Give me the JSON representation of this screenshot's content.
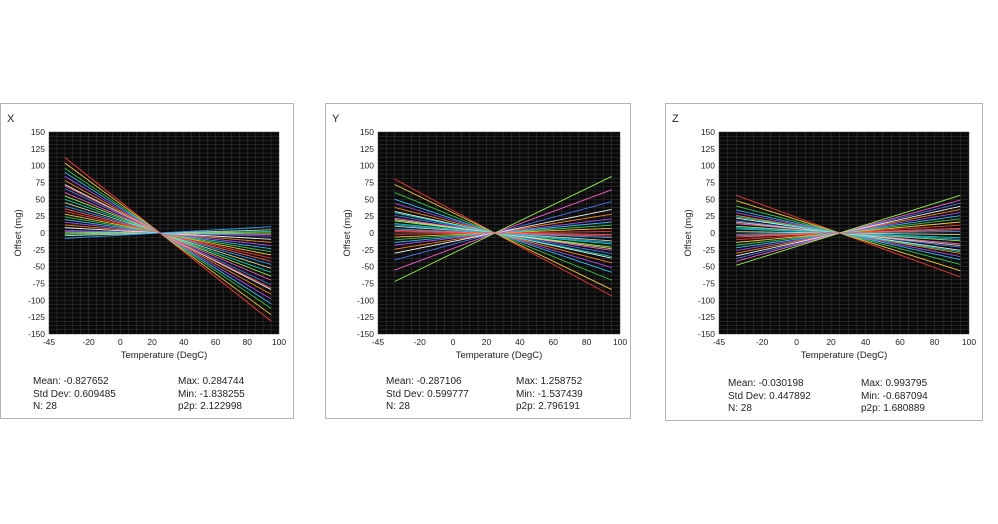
{
  "chart_data": [
    {
      "type": "line",
      "title": "X",
      "xlabel": "Temperature (DegC)",
      "ylabel": "Offset (mg)",
      "xlim": [
        -45,
        100
      ],
      "ylim": [
        -150,
        150
      ],
      "xticks": [
        -45,
        -20,
        0,
        20,
        40,
        60,
        80,
        100
      ],
      "yticks": [
        150,
        125,
        100,
        75,
        50,
        25,
        0,
        -25,
        -50,
        -75,
        -100,
        -125,
        -150
      ],
      "grid": true,
      "pivot": [
        25,
        0
      ],
      "x_range": [
        -35,
        95
      ],
      "series_count": 28,
      "line_endpoints_at_x_minus_35": [
        112,
        104,
        96,
        90,
        84,
        78,
        72,
        66,
        60,
        55,
        50,
        45,
        40,
        36,
        32,
        28,
        24,
        20,
        16,
        12,
        8,
        4,
        2,
        0,
        -2,
        -4,
        -8,
        70
      ],
      "stats": {
        "mean": "Mean: -0.827652",
        "std": "Std Dev: 0.609485",
        "n": "N: 28",
        "max": "Max: 0.284744",
        "min": "Min: -1.838255",
        "p2p": "p2p: 2.122998"
      }
    },
    {
      "type": "line",
      "title": "Y",
      "xlabel": "Temperature (DegC)",
      "ylabel": "Offset (mg)",
      "xlim": [
        -45,
        100
      ],
      "ylim": [
        -150,
        150
      ],
      "xticks": [
        -45,
        -20,
        0,
        20,
        40,
        60,
        80,
        100
      ],
      "yticks": [
        150,
        125,
        100,
        75,
        50,
        25,
        0,
        -25,
        -50,
        -75,
        -100,
        -125,
        -150
      ],
      "grid": true,
      "pivot": [
        25,
        0
      ],
      "x_range": [
        -35,
        95
      ],
      "series_count": 28,
      "line_endpoints_at_x_minus_35": [
        80,
        72,
        60,
        50,
        44,
        38,
        32,
        26,
        22,
        18,
        14,
        10,
        6,
        2,
        -2,
        -6,
        -10,
        -14,
        -18,
        -24,
        -30,
        -40,
        -55,
        -72,
        30,
        20,
        12,
        4
      ],
      "stats": {
        "mean": "Mean: -0.287106",
        "std": "Std Dev: 0.599777",
        "n": "N: 28",
        "max": "Max: 1.258752",
        "min": "Min: -1.537439",
        "p2p": "p2p: 2.796191"
      }
    },
    {
      "type": "line",
      "title": "Z",
      "xlabel": "Temperature (DegC)",
      "ylabel": "Offset (mg)",
      "xlim": [
        -45,
        100
      ],
      "ylim": [
        -150,
        150
      ],
      "xticks": [
        -45,
        -20,
        0,
        20,
        40,
        60,
        80,
        100
      ],
      "yticks": [
        150,
        125,
        100,
        75,
        50,
        25,
        0,
        -25,
        -50,
        -75,
        -100,
        -125,
        -150
      ],
      "grid": true,
      "pivot": [
        25,
        0
      ],
      "x_range": [
        -35,
        95
      ],
      "series_count": 28,
      "line_endpoints_at_x_minus_35": [
        56,
        48,
        40,
        34,
        30,
        26,
        22,
        18,
        14,
        10,
        6,
        2,
        -2,
        -6,
        -10,
        -14,
        -18,
        -22,
        -26,
        -30,
        -34,
        -38,
        -42,
        -48,
        24,
        16,
        8,
        -4
      ],
      "stats": {
        "mean": "Mean: -0.030198",
        "std": "Std Dev: 0.447892",
        "n": "N: 28",
        "max": "Max: 0.993795",
        "min": "Min: -0.687094",
        "p2p": "p2p: 1.680889"
      }
    }
  ],
  "colors": {
    "plot_bg": "#0a0a0a",
    "grid": "#3c3c3c",
    "series_palette": [
      "#ff3b3b",
      "#ffd23f",
      "#3bd14a",
      "#31c6ff",
      "#b04bff",
      "#ff8c1a",
      "#ffffff",
      "#4b7bff",
      "#ff5fd2",
      "#9aff4b",
      "#00e0c0",
      "#e0e0a0",
      "#2fa0ff",
      "#ff6060"
    ]
  }
}
